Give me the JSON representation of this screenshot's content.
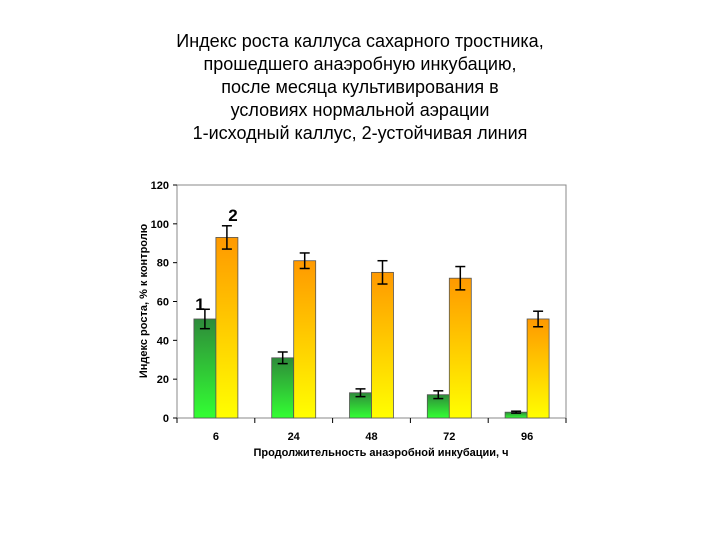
{
  "chart_data": {
    "type": "bar",
    "title_lines": [
      "Индекс роста каллуса сахарного тростника,",
      "прошедшего анаэробную инкубацию,",
      "после месяца культивирования в",
      "условиях нормальной аэрации",
      "1-исходный каллус, 2-устойчивая линия"
    ],
    "xlabel": "Продолжительность анаэробной инкубации, ч",
    "ylabel": "Индекс роста, % к контролю",
    "categories": [
      "6",
      "24",
      "48",
      "72",
      "96"
    ],
    "ylim": [
      0,
      120
    ],
    "yticks": [
      "0",
      "20",
      "40",
      "60",
      "80",
      "100",
      "120"
    ],
    "grid": false,
    "series": [
      {
        "name": "1",
        "values": [
          51,
          31,
          13,
          12,
          3
        ],
        "errors": [
          5,
          3,
          2,
          2,
          0.5
        ],
        "colors": {
          "top": "#2e8b3a",
          "bottom": "#33ff33"
        }
      },
      {
        "name": "2",
        "values": [
          93,
          81,
          75,
          72,
          51
        ],
        "errors": [
          6,
          4,
          6,
          6,
          4
        ],
        "colors": {
          "top": "#ff9900",
          "bottom": "#ffff00"
        }
      }
    ]
  }
}
